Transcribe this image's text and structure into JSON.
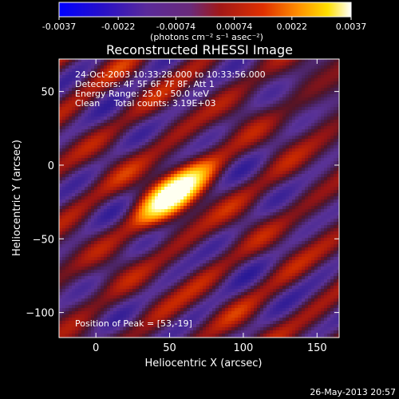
{
  "colors": {
    "background": "#000000",
    "text": "#ffffff"
  },
  "colorbar": {
    "colormap": "blue-purple-red-yellow-white",
    "ticks": [
      "-0.0037",
      "-0.0022",
      "-0.00074",
      "0.00074",
      "0.0022",
      "0.0037"
    ],
    "unit_label": "(photons cm⁻² s⁻¹ asec⁻²)",
    "range": [
      -0.0037,
      0.0037
    ]
  },
  "chart_data": {
    "type": "heatmap",
    "title": "Reconstructed RHESSI Image",
    "xlabel": "Heliocentric X (arcsec)",
    "ylabel": "Heliocentric Y (arcsec)",
    "xlim": [
      -25,
      165
    ],
    "ylim": [
      -117,
      72
    ],
    "xticks": [
      0,
      50,
      100,
      150
    ],
    "yticks": [
      50,
      0,
      -50,
      -100
    ],
    "tick_labels_x": [
      "0",
      "50",
      "100",
      "150"
    ],
    "tick_labels_y": [
      "50",
      "0",
      "−50",
      "−100"
    ],
    "annotations": [
      "24-Oct-2003 10:33:28.000 to 10:33:56.000",
      "Detectors: 4F 5F 6F 7F 8F, Att 1",
      "Energy Range: 25.0 - 50.0 keV",
      "Clean     Total counts: 3.19E+03"
    ],
    "peak_label": "Position of Peak = [53,-19]",
    "peak": {
      "x": 53,
      "y": -19
    },
    "stripe_orientation": "diagonal, upper-left to lower-right"
  },
  "footer_date": "26-May-2013 20:57"
}
